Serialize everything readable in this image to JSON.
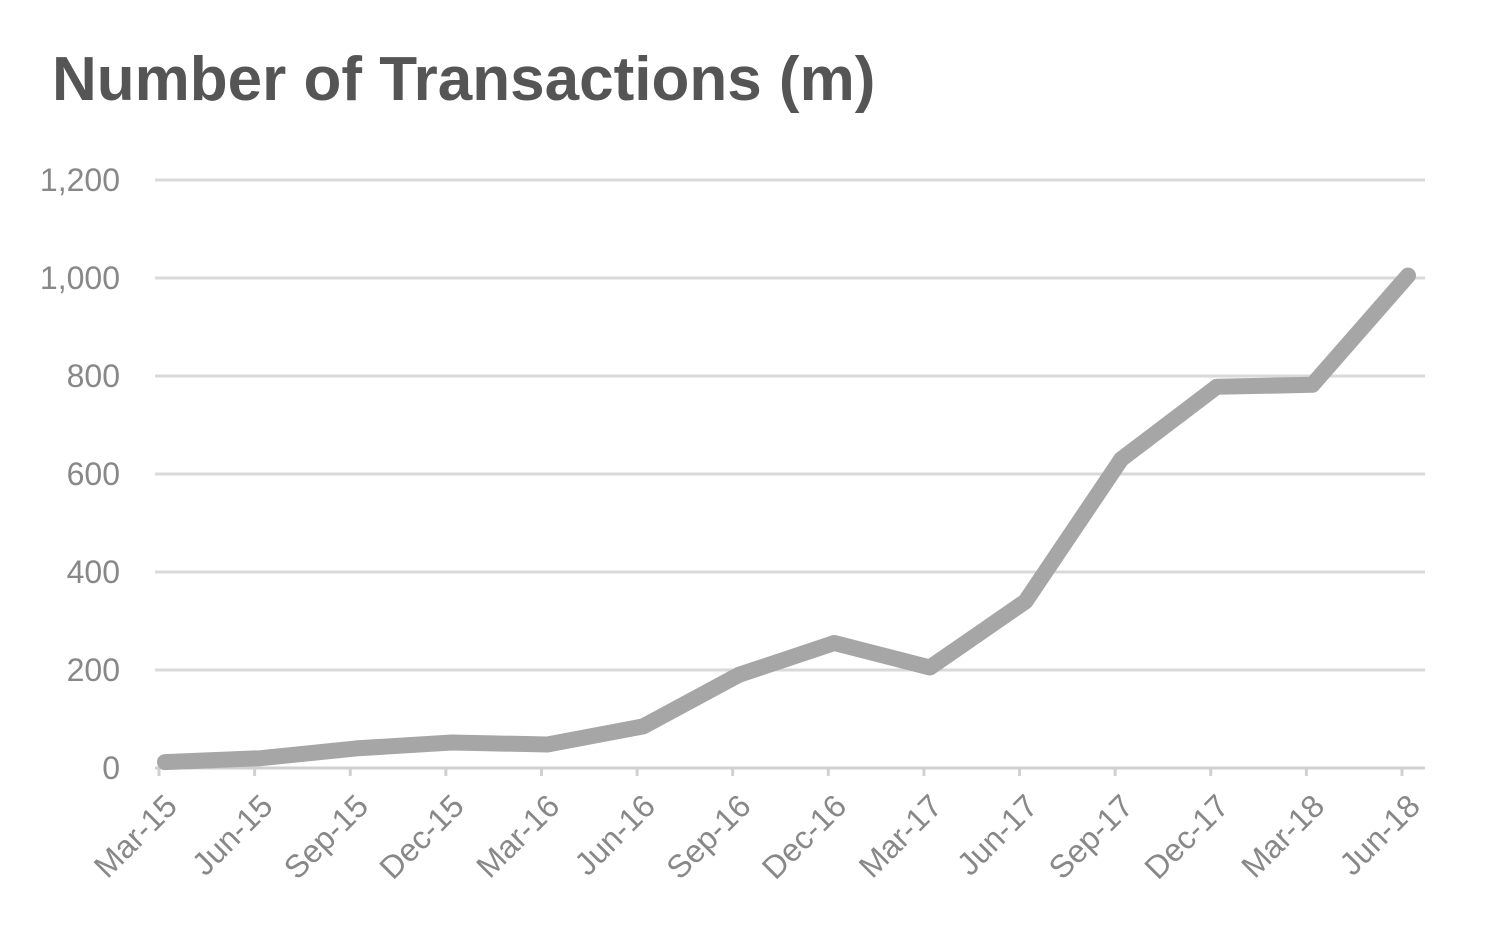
{
  "chart_data": {
    "type": "line",
    "title": "Number of Transactions (m)",
    "xlabel": "",
    "ylabel": "",
    "categories": [
      "Mar-15",
      "Jun-15",
      "Sep-15",
      "Dec-15",
      "Mar-16",
      "Jun-16",
      "Sep-16",
      "Dec-16",
      "Mar-17",
      "Jun-17",
      "Sep-17",
      "Dec-17",
      "Mar-18",
      "Jun-18"
    ],
    "series": [
      {
        "values": [
          12,
          20,
          40,
          52,
          48,
          85,
          190,
          255,
          205,
          340,
          630,
          778,
          782,
          1005
        ]
      }
    ],
    "ylim": [
      0,
      1200
    ],
    "yticks": [
      0,
      200,
      400,
      600,
      800,
      1000,
      1200
    ],
    "ytick_labels": [
      "0",
      "200",
      "400",
      "600",
      "800",
      "1,000",
      "1,200"
    ],
    "grid": true,
    "legend": "none",
    "colors": {
      "line": "#a6a6a6",
      "grid": "#d9d9d9",
      "text": "#888888",
      "title": "#555555"
    }
  }
}
